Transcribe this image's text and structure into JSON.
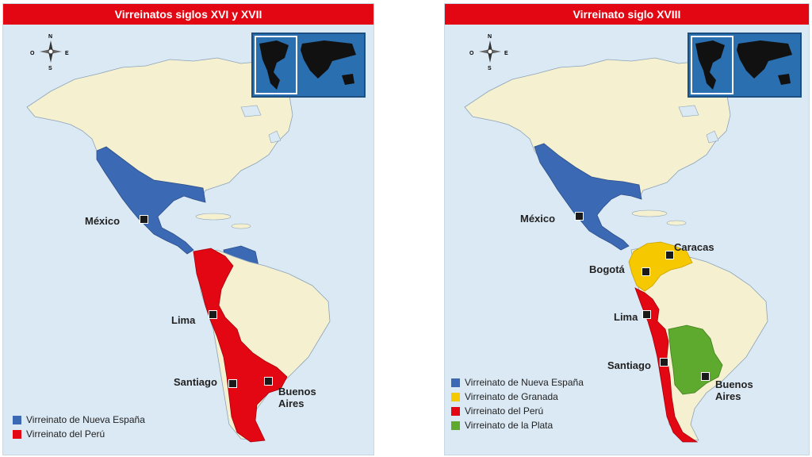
{
  "panels": [
    {
      "id": "left",
      "title": "Virreinatos siglos XVI y XVII",
      "cities": {
        "mexico": "México",
        "lima": "Lima",
        "santiago": "Santiago",
        "buenos_aires_1": "Buenos",
        "buenos_aires_2": "Aires"
      },
      "legend": [
        {
          "label": "Virreinato de Nueva España",
          "color": "#3c69b4"
        },
        {
          "label": "Virreinato del Perú",
          "color": "#e30613"
        }
      ]
    },
    {
      "id": "right",
      "title": "Virreinato siglo XVIII",
      "cities": {
        "mexico": "México",
        "bogota": "Bogotá",
        "caracas": "Caracas",
        "lima": "Lima",
        "santiago": "Santiago",
        "buenos_aires_1": "Buenos",
        "buenos_aires_2": "Aires"
      },
      "legend": [
        {
          "label": "Virreinato de Nueva España",
          "color": "#3c69b4"
        },
        {
          "label": "Virreinato de Granada",
          "color": "#f6c800"
        },
        {
          "label": "Virreinato del Perú",
          "color": "#e30613"
        },
        {
          "label": "Virreinato de la Plata",
          "color": "#5daa2e"
        }
      ]
    }
  ],
  "compass": {
    "n": "N",
    "s": "S",
    "e": "E",
    "o": "O"
  },
  "colors": {
    "ocean": "#dbe9f4",
    "land": "#f5f0d0",
    "header": "#e30613",
    "nueva_espana": "#3c69b4",
    "granada": "#f6c800",
    "peru": "#e30613",
    "plata": "#5daa2e"
  }
}
